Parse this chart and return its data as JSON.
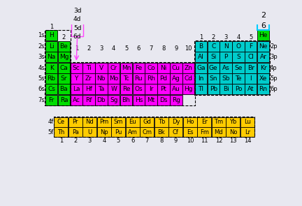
{
  "bg_color": "#e8e8f0",
  "colors": {
    "s": "#00dd00",
    "p": "#00cccc",
    "d": "#ff00ff",
    "f": "#ffcc00",
    "label_box_green": "#00cc00",
    "label_box_cyan": "#00ccff"
  },
  "rows": [
    {
      "label": "1s",
      "elems": [
        {
          "sym": "H",
          "col": 0,
          "type": "s"
        }
      ],
      "right": [
        {
          "sym": "He",
          "col": 17,
          "type": "s"
        }
      ]
    },
    {
      "label": "2s",
      "elems": [
        {
          "sym": "Li",
          "col": 0,
          "type": "s"
        },
        {
          "sym": "Be",
          "col": 1,
          "type": "s"
        }
      ],
      "right": [
        {
          "sym": "B",
          "col": 12,
          "type": "p"
        },
        {
          "sym": "C",
          "col": 13,
          "type": "p"
        },
        {
          "sym": "N",
          "col": 14,
          "type": "p"
        },
        {
          "sym": "O",
          "col": 15,
          "type": "p"
        },
        {
          "sym": "F",
          "col": 16,
          "type": "p"
        },
        {
          "sym": "Ne",
          "col": 17,
          "type": "p"
        }
      ]
    },
    {
      "label": "3s",
      "elems": [
        {
          "sym": "Na",
          "col": 0,
          "type": "s"
        },
        {
          "sym": "Mg",
          "col": 1,
          "type": "s"
        }
      ],
      "right": [
        {
          "sym": "Al",
          "col": 12,
          "type": "p"
        },
        {
          "sym": "Si",
          "col": 13,
          "type": "p"
        },
        {
          "sym": "P",
          "col": 14,
          "type": "p"
        },
        {
          "sym": "S",
          "col": 15,
          "type": "p"
        },
        {
          "sym": "Cl",
          "col": 16,
          "type": "p"
        },
        {
          "sym": "Ar",
          "col": 17,
          "type": "p"
        }
      ]
    },
    {
      "label": "4s",
      "elems": [
        {
          "sym": "K",
          "col": 0,
          "type": "s"
        },
        {
          "sym": "Ca",
          "col": 1,
          "type": "s"
        },
        {
          "sym": "Sc",
          "col": 2,
          "type": "d"
        },
        {
          "sym": "Ti",
          "col": 3,
          "type": "d"
        },
        {
          "sym": "V",
          "col": 4,
          "type": "d"
        },
        {
          "sym": "Cr",
          "col": 5,
          "type": "d"
        },
        {
          "sym": "Mn",
          "col": 6,
          "type": "d"
        },
        {
          "sym": "Fe",
          "col": 7,
          "type": "d"
        },
        {
          "sym": "Co",
          "col": 8,
          "type": "d"
        },
        {
          "sym": "Ni",
          "col": 9,
          "type": "d"
        },
        {
          "sym": "Cu",
          "col": 10,
          "type": "d"
        },
        {
          "sym": "Zn",
          "col": 11,
          "type": "d"
        },
        {
          "sym": "Ga",
          "col": 12,
          "type": "p"
        },
        {
          "sym": "Ge",
          "col": 13,
          "type": "p"
        },
        {
          "sym": "As",
          "col": 14,
          "type": "p"
        },
        {
          "sym": "Se",
          "col": 15,
          "type": "p"
        },
        {
          "sym": "Br",
          "col": 16,
          "type": "p"
        },
        {
          "sym": "Kr",
          "col": 17,
          "type": "p"
        }
      ]
    },
    {
      "label": "5s",
      "elems": [
        {
          "sym": "Rb",
          "col": 0,
          "type": "s"
        },
        {
          "sym": "Sr",
          "col": 1,
          "type": "s"
        },
        {
          "sym": "Y",
          "col": 2,
          "type": "d"
        },
        {
          "sym": "Zr",
          "col": 3,
          "type": "d"
        },
        {
          "sym": "Nb",
          "col": 4,
          "type": "d"
        },
        {
          "sym": "Mo",
          "col": 5,
          "type": "d"
        },
        {
          "sym": "Tc",
          "col": 6,
          "type": "d"
        },
        {
          "sym": "Ru",
          "col": 7,
          "type": "d"
        },
        {
          "sym": "Rh",
          "col": 8,
          "type": "d"
        },
        {
          "sym": "Pd",
          "col": 9,
          "type": "d"
        },
        {
          "sym": "Ag",
          "col": 10,
          "type": "d"
        },
        {
          "sym": "Cd",
          "col": 11,
          "type": "d"
        },
        {
          "sym": "In",
          "col": 12,
          "type": "p"
        },
        {
          "sym": "Sn",
          "col": 13,
          "type": "p"
        },
        {
          "sym": "Sb",
          "col": 14,
          "type": "p"
        },
        {
          "sym": "Te",
          "col": 15,
          "type": "p"
        },
        {
          "sym": "I",
          "col": 16,
          "type": "p"
        },
        {
          "sym": "Xe",
          "col": 17,
          "type": "p"
        }
      ]
    },
    {
      "label": "6s",
      "elems": [
        {
          "sym": "Cs",
          "col": 0,
          "type": "s"
        },
        {
          "sym": "Ba",
          "col": 1,
          "type": "s"
        },
        {
          "sym": "La",
          "col": 2,
          "type": "d"
        },
        {
          "sym": "Hf",
          "col": 3,
          "type": "d"
        },
        {
          "sym": "Ta",
          "col": 4,
          "type": "d"
        },
        {
          "sym": "W",
          "col": 5,
          "type": "d"
        },
        {
          "sym": "Re",
          "col": 6,
          "type": "d"
        },
        {
          "sym": "Os",
          "col": 7,
          "type": "d"
        },
        {
          "sym": "Ir",
          "col": 8,
          "type": "d"
        },
        {
          "sym": "Pt",
          "col": 9,
          "type": "d"
        },
        {
          "sym": "Au",
          "col": 10,
          "type": "d"
        },
        {
          "sym": "Hg",
          "col": 11,
          "type": "d"
        },
        {
          "sym": "Tl",
          "col": 12,
          "type": "p"
        },
        {
          "sym": "Pb",
          "col": 13,
          "type": "p"
        },
        {
          "sym": "Bi",
          "col": 14,
          "type": "p"
        },
        {
          "sym": "Po",
          "col": 15,
          "type": "p"
        },
        {
          "sym": "At",
          "col": 16,
          "type": "p"
        },
        {
          "sym": "Rn",
          "col": 17,
          "type": "p"
        }
      ]
    },
    {
      "label": "7s",
      "elems": [
        {
          "sym": "Fr",
          "col": 0,
          "type": "s"
        },
        {
          "sym": "Ra",
          "col": 1,
          "type": "s"
        },
        {
          "sym": "Ac",
          "col": 2,
          "type": "d"
        },
        {
          "sym": "Rf",
          "col": 3,
          "type": "d"
        },
        {
          "sym": "Db",
          "col": 4,
          "type": "d"
        },
        {
          "sym": "Sg",
          "col": 5,
          "type": "d"
        },
        {
          "sym": "Bh",
          "col": 6,
          "type": "d"
        },
        {
          "sym": "Hs",
          "col": 7,
          "type": "d"
        },
        {
          "sym": "Mt",
          "col": 8,
          "type": "d"
        },
        {
          "sym": "Ds",
          "col": 9,
          "type": "d"
        },
        {
          "sym": "Rg",
          "col": 10,
          "type": "d"
        }
      ]
    }
  ],
  "f_rows": [
    {
      "label": "4f",
      "elems": [
        "Ce",
        "Pr",
        "Nd",
        "Pm",
        "Sm",
        "Eu",
        "Gd",
        "Tb",
        "Dy",
        "Ho",
        "Er",
        "Tm",
        "Yb",
        "Lu"
      ]
    },
    {
      "label": "5f",
      "elems": [
        "Th",
        "Pa",
        "U",
        "Np",
        "Pu",
        "Am",
        "Cm",
        "Bk",
        "Cf",
        "Es",
        "Fm",
        "Md",
        "No",
        "Lr"
      ]
    }
  ],
  "p_col_labels": [
    "1",
    "2",
    "3",
    "4",
    "5"
  ],
  "d_col_labels": [
    "1",
    "2",
    "3",
    "4",
    "5",
    "6",
    "7",
    "8",
    "9",
    "10"
  ],
  "right_row_labels": [
    "2p",
    "3p",
    "4p",
    "5p",
    "6p"
  ],
  "top_num_2": "2",
  "top_num_6": "6"
}
